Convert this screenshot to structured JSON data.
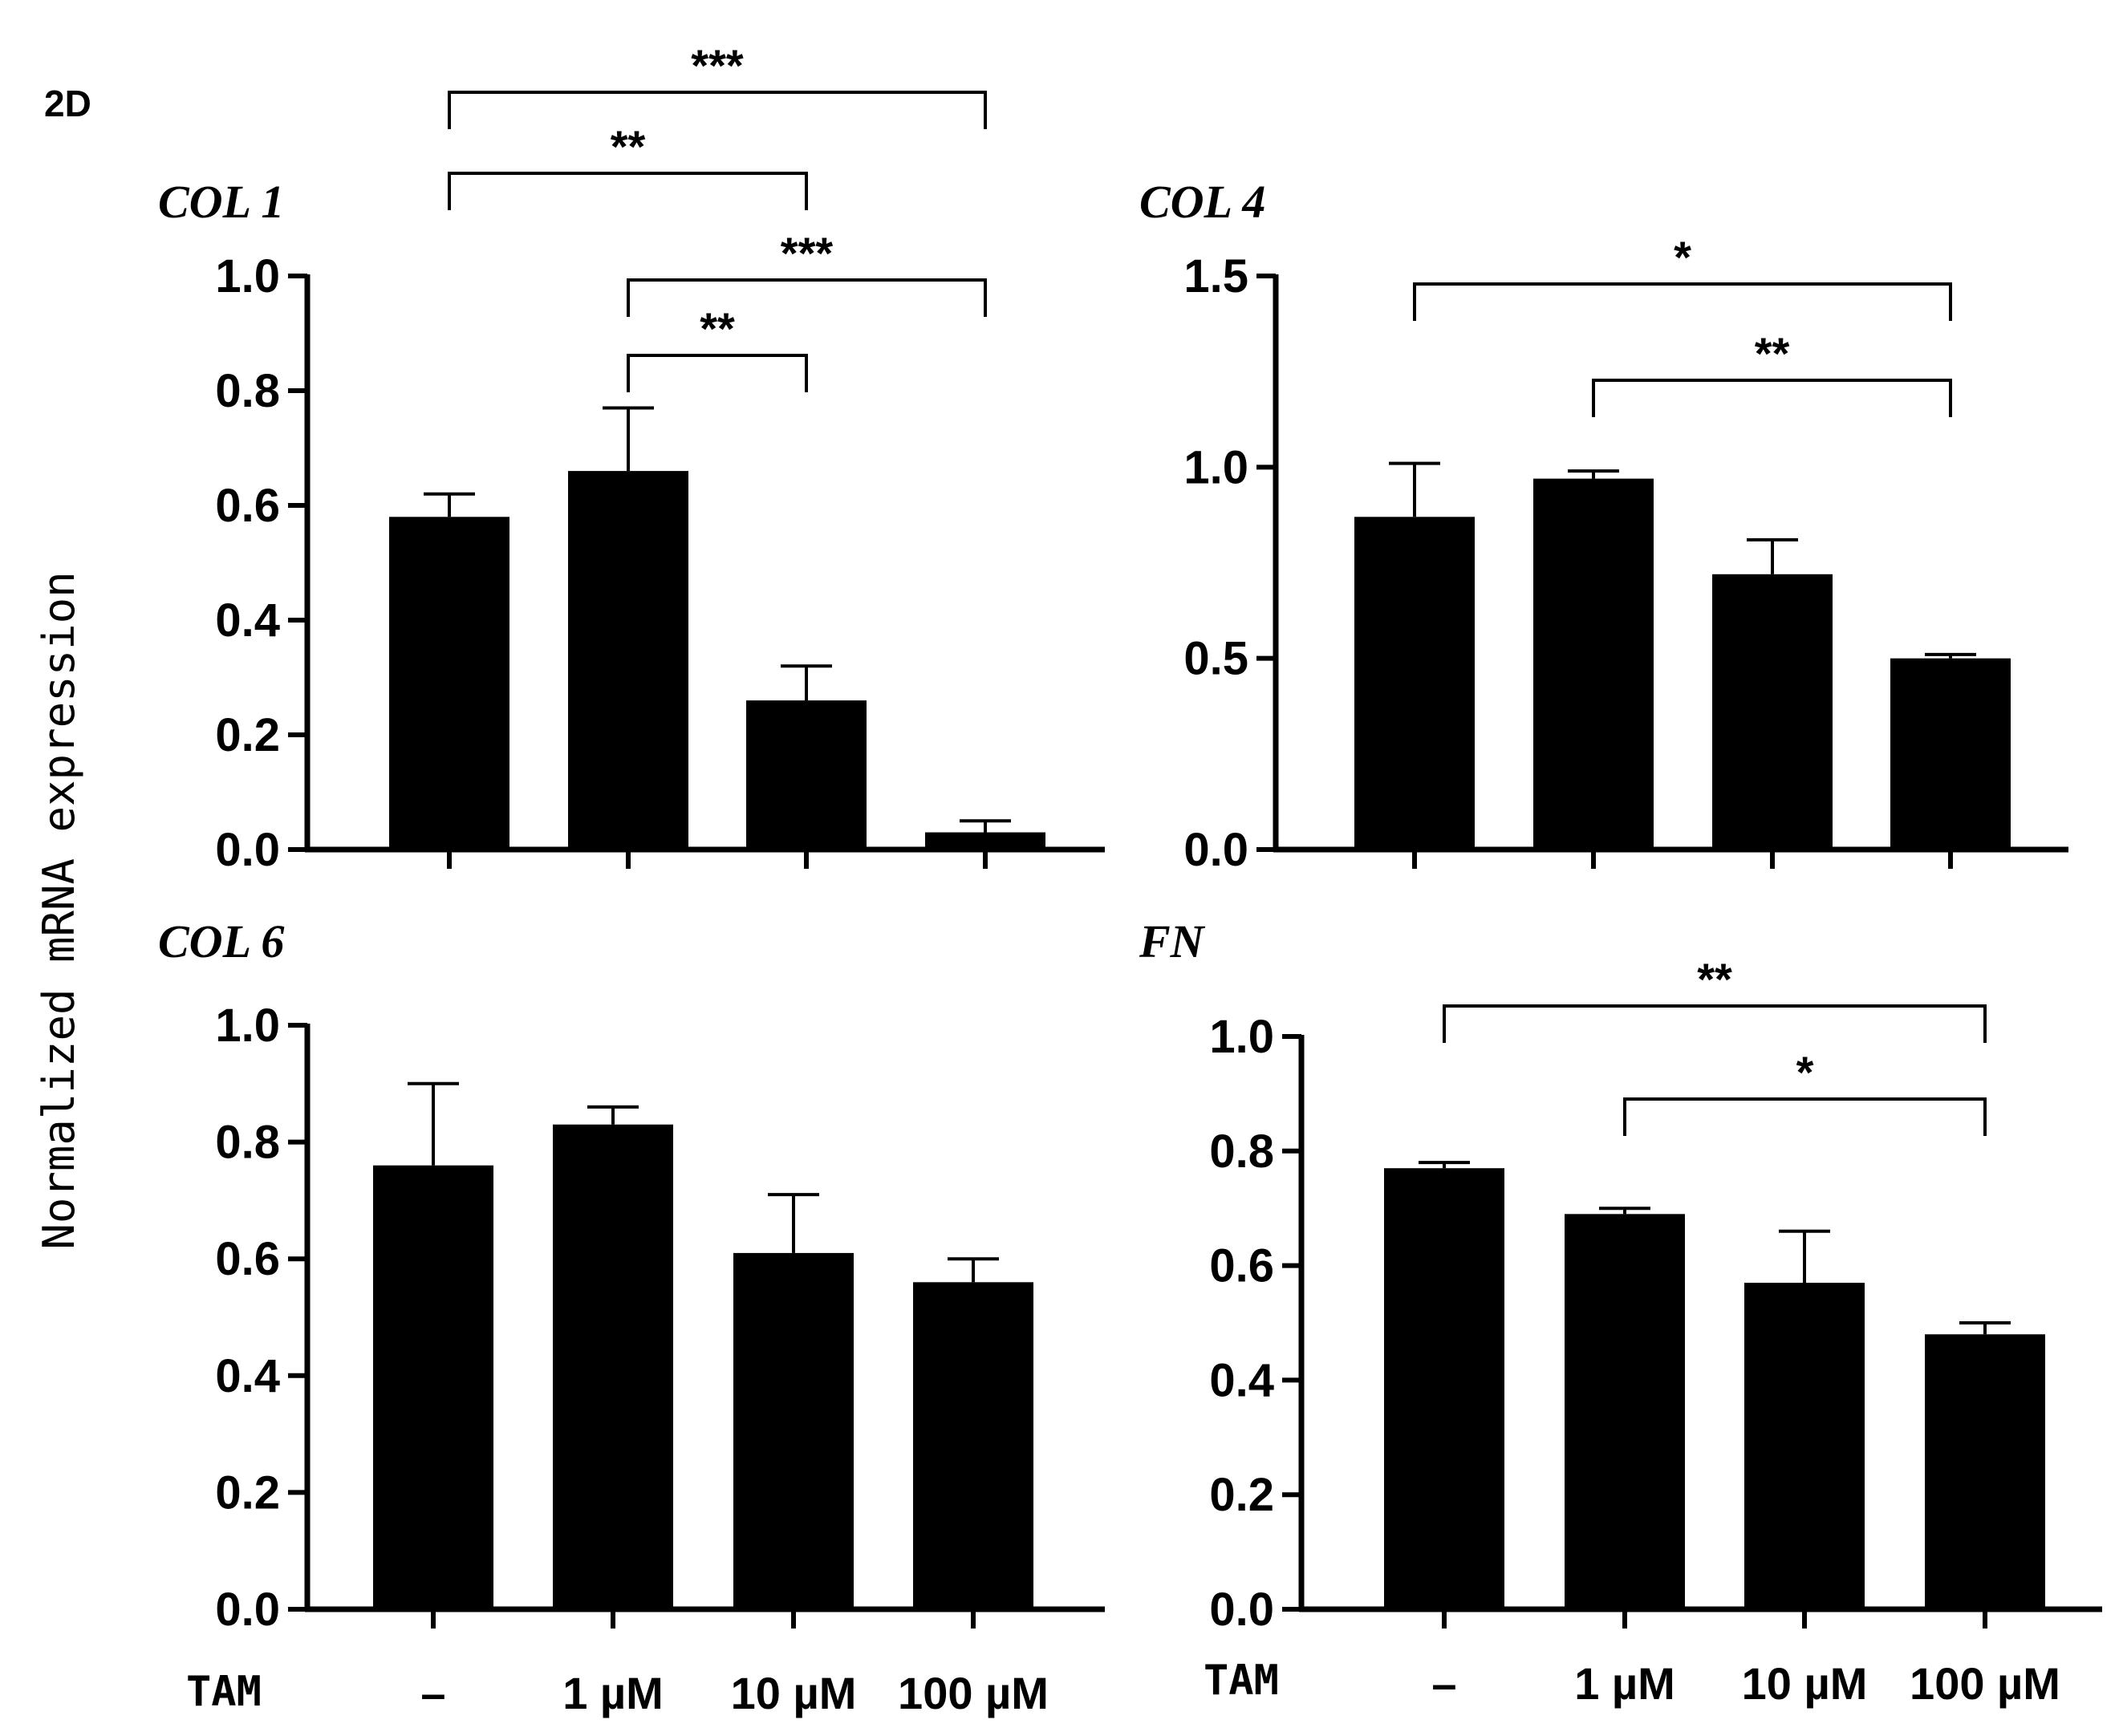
{
  "figure": {
    "panel_label": "2D",
    "ylabel": "Normalized mRNA expression",
    "treatment_label": "TAM",
    "categories": [
      "–",
      "1 µM",
      "10 µM",
      "100 µM"
    ]
  },
  "colors": {
    "bar": "#000000",
    "background": "#ffffff"
  },
  "chart_data": [
    {
      "type": "bar",
      "title": "COL 1",
      "categories": [
        "–",
        "1 µM",
        "10 µM",
        "100 µM"
      ],
      "values": [
        0.58,
        0.66,
        0.26,
        0.03
      ],
      "errors": [
        0.04,
        0.11,
        0.06,
        0.02
      ],
      "ylim": [
        0,
        1.0
      ],
      "yticks": [
        0.0,
        0.2,
        0.4,
        0.6,
        0.8,
        1.0
      ],
      "ytick_labels": [
        "0.0",
        "0.2",
        "0.4",
        "0.6",
        "0.8",
        "1.0"
      ],
      "xlabel": "",
      "ylabel": "Normalized mRNA expression",
      "significance": [
        {
          "from": 0,
          "to": 3,
          "label": "***",
          "level": 4
        },
        {
          "from": 0,
          "to": 2,
          "label": "**",
          "level": 3
        },
        {
          "from": 1,
          "to": 3,
          "label": "***",
          "level": 2
        },
        {
          "from": 1,
          "to": 2,
          "label": "**",
          "level": 1
        }
      ]
    },
    {
      "type": "bar",
      "title": "COL 4",
      "categories": [
        "–",
        "1 µM",
        "10 µM",
        "100 µM"
      ],
      "values": [
        0.87,
        0.97,
        0.72,
        0.5
      ],
      "errors": [
        0.14,
        0.02,
        0.09,
        0.01
      ],
      "ylim": [
        0,
        1.5
      ],
      "yticks": [
        0.0,
        0.5,
        1.0,
        1.5
      ],
      "ytick_labels": [
        "0.0",
        "0.5",
        "1.0",
        "1.5"
      ],
      "xlabel": "",
      "ylabel": "Normalized mRNA expression",
      "significance": [
        {
          "from": 0,
          "to": 3,
          "label": "*",
          "level": 2
        },
        {
          "from": 1,
          "to": 3,
          "label": "**",
          "level": 1
        }
      ]
    },
    {
      "type": "bar",
      "title": "COL 6",
      "categories": [
        "–",
        "1 µM",
        "10 µM",
        "100 µM"
      ],
      "values": [
        0.76,
        0.83,
        0.61,
        0.56
      ],
      "errors": [
        0.14,
        0.03,
        0.1,
        0.04
      ],
      "ylim": [
        0,
        1.0
      ],
      "yticks": [
        0.0,
        0.2,
        0.4,
        0.6,
        0.8,
        1.0
      ],
      "ytick_labels": [
        "0.0",
        "0.2",
        "0.4",
        "0.6",
        "0.8",
        "1.0"
      ],
      "xlabel": "",
      "ylabel": "Normalized mRNA expression",
      "significance": []
    },
    {
      "type": "bar",
      "title": "FN",
      "categories": [
        "–",
        "1 µM",
        "10 µM",
        "100 µM"
      ],
      "values": [
        0.77,
        0.69,
        0.57,
        0.48
      ],
      "errors": [
        0.01,
        0.01,
        0.09,
        0.02
      ],
      "ylim": [
        0,
        1.0
      ],
      "yticks": [
        0.0,
        0.2,
        0.4,
        0.6,
        0.8,
        1.0
      ],
      "ytick_labels": [
        "0.0",
        "0.2",
        "0.4",
        "0.6",
        "0.8",
        "1.0"
      ],
      "xlabel": "",
      "ylabel": "Normalized mRNA expression",
      "significance": [
        {
          "from": 0,
          "to": 3,
          "label": "**",
          "level": 2
        },
        {
          "from": 1,
          "to": 3,
          "label": "*",
          "level": 1
        }
      ]
    }
  ]
}
